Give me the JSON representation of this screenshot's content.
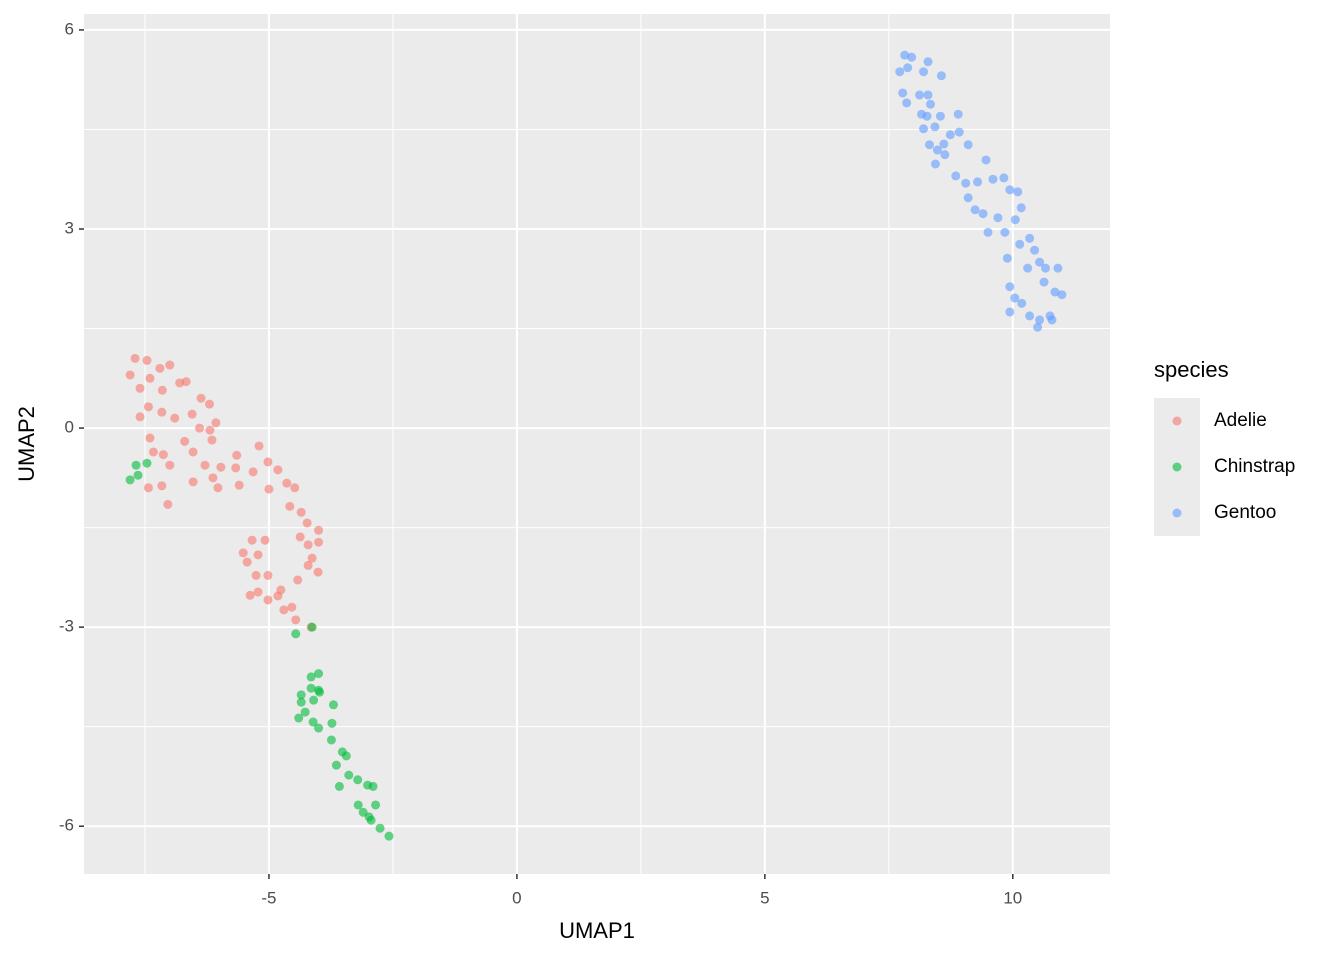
{
  "chart_data": {
    "type": "scatter",
    "x_label": "UMAP1",
    "y_label": "UMAP2",
    "legend_title": "species",
    "xlim": [
      -8.73,
      11.96
    ],
    "ylim": [
      -6.72,
      6.24
    ],
    "xticks": [
      -5,
      0,
      5,
      10
    ],
    "yticks": [
      -6,
      -3,
      0,
      3,
      6
    ],
    "grid": true,
    "legend": "right",
    "opacity": 0.6,
    "series": [
      {
        "name": "Adelie",
        "color": "#F8766D",
        "x": [
          -7.7,
          -7.46,
          -7.8,
          -7.2,
          -7.0,
          -7.4,
          -6.67,
          -6.8,
          -7.6,
          -7.15,
          -6.37,
          -6.2,
          -7.43,
          -6.55,
          -7.6,
          -6.07,
          -6.9,
          -7.16,
          -6.4,
          -6.7,
          -7.4,
          -7.13,
          -7.33,
          -7.0,
          -6.53,
          -6.19,
          -6.15,
          -6.29,
          -5.97,
          -6.53,
          -7.43,
          -7.16,
          -7.04,
          -6.13,
          -6.03,
          -5.65,
          -5.67,
          -5.2,
          -5.32,
          -5.02,
          -5.0,
          -4.82,
          -5.6,
          -4.64,
          -4.48,
          -4.58,
          -4.35,
          -4.23,
          -4.0,
          -4.37,
          -4.21,
          -4.0,
          -4.13,
          -5.34,
          -5.52,
          -5.44,
          -5.22,
          -4.21,
          -4.01,
          -5.26,
          -5.02,
          -4.42,
          -5.22,
          -5.02,
          -4.82,
          -4.7,
          -4.54,
          -4.46,
          -4.15,
          -5.08,
          -5.38,
          -4.76
        ],
        "values": [
          1.05,
          1.02,
          0.8,
          0.9,
          0.95,
          0.75,
          0.7,
          0.68,
          0.6,
          0.57,
          0.45,
          0.36,
          0.32,
          0.21,
          0.17,
          0.08,
          0.15,
          0.24,
          0,
          -0.2,
          -0.15,
          -0.4,
          -0.36,
          -0.56,
          -0.36,
          -0.03,
          -0.18,
          -0.56,
          -0.59,
          -0.81,
          -0.9,
          -0.87,
          -1.15,
          -0.75,
          -0.9,
          -0.41,
          -0.6,
          -0.27,
          -0.66,
          -0.51,
          -0.92,
          -0.63,
          -0.86,
          -0.83,
          -0.9,
          -1.18,
          -1.27,
          -1.43,
          -1.54,
          -1.64,
          -1.76,
          -1.72,
          -1.96,
          -1.69,
          -1.88,
          -2.02,
          -1.91,
          -2.07,
          -2.17,
          -2.22,
          -2.22,
          -2.29,
          -2.47,
          -2.59,
          -2.53,
          -2.74,
          -2.7,
          -2.89,
          -3.0,
          -1.69,
          -2.52,
          -2.44
        ]
      },
      {
        "name": "Chinstrap",
        "color": "#00BA38",
        "x": [
          -7.8,
          -7.68,
          -7.46,
          -7.64,
          -4.46,
          -4.13,
          -4.15,
          -4.0,
          -4.0,
          -4.35,
          -4.15,
          -3.98,
          -3.7,
          -4.35,
          -4.1,
          -4.27,
          -4.4,
          -4.11,
          -3.73,
          -4.0,
          -3.74,
          -3.52,
          -3.44,
          -3.64,
          -3.39,
          -3.58,
          -3.21,
          -3.01,
          -2.9,
          -2.85,
          -3.2,
          -3.1,
          -2.94,
          -2.76,
          -2.58,
          -2.98
        ],
        "values": [
          -0.78,
          -0.56,
          -0.53,
          -0.71,
          -3.1,
          -3.0,
          -3.75,
          -3.7,
          -3.95,
          -4.02,
          -3.92,
          -3.98,
          -4.17,
          -4.13,
          -4.1,
          -4.28,
          -4.37,
          -4.43,
          -4.45,
          -4.52,
          -4.7,
          -4.88,
          -4.94,
          -5.08,
          -5.23,
          -5.4,
          -5.3,
          -5.38,
          -5.4,
          -5.68,
          -5.68,
          -5.79,
          -5.91,
          -6.03,
          -6.15,
          -5.86
        ]
      },
      {
        "name": "Gentoo",
        "color": "#619CFF",
        "x": [
          7.82,
          7.96,
          7.72,
          7.88,
          8.29,
          8.2,
          8.56,
          7.78,
          8.12,
          8.29,
          7.86,
          8.34,
          8.16,
          8.27,
          8.54,
          8.9,
          8.2,
          8.43,
          8.74,
          8.92,
          8.61,
          8.32,
          8.48,
          9.1,
          8.63,
          8.44,
          9.46,
          8.85,
          9.05,
          9.29,
          9.6,
          9.82,
          9.94,
          10.1,
          9.1,
          9.24,
          9.4,
          9.7,
          10.05,
          10.17,
          9.5,
          9.84,
          10.14,
          10.34,
          10.44,
          9.89,
          10.54,
          10.66,
          10.91,
          10.3,
          9.94,
          10.63,
          10.85,
          10.99,
          10.04,
          10.18,
          9.94,
          10.34,
          10.54,
          10.75,
          10.5,
          10.79
        ],
        "values": [
          5.62,
          5.59,
          5.37,
          5.43,
          5.52,
          5.37,
          5.31,
          5.05,
          5.02,
          5.02,
          4.9,
          4.88,
          4.73,
          4.7,
          4.7,
          4.73,
          4.51,
          4.54,
          4.42,
          4.46,
          4.28,
          4.27,
          4.19,
          4.27,
          4.12,
          3.98,
          4.04,
          3.8,
          3.69,
          3.71,
          3.75,
          3.77,
          3.59,
          3.56,
          3.47,
          3.29,
          3.23,
          3.17,
          3.14,
          3.32,
          2.95,
          2.95,
          2.77,
          2.86,
          2.68,
          2.56,
          2.5,
          2.41,
          2.41,
          2.41,
          2.13,
          2.2,
          2.05,
          2.01,
          1.96,
          1.88,
          1.75,
          1.69,
          1.63,
          1.69,
          1.52,
          1.63
        ]
      }
    ]
  }
}
